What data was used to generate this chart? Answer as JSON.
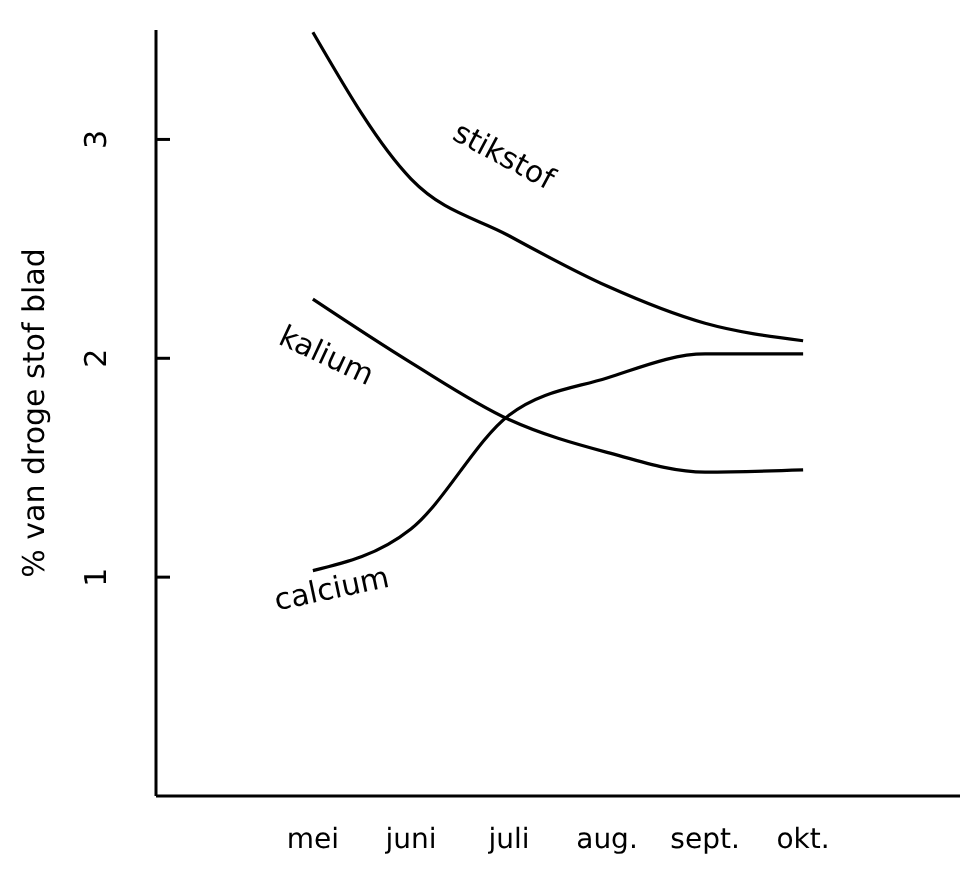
{
  "chart_data": {
    "type": "line",
    "ylabel": "% van droge stof blad",
    "ylim": [
      0,
      3.5
    ],
    "yticks": [
      1,
      2,
      3
    ],
    "categories": [
      "mei",
      "juni",
      "juli",
      "aug.",
      "sept.",
      "okt."
    ],
    "legend": false,
    "grid": false,
    "marker": "none",
    "line_style": "solid",
    "series": [
      {
        "name": "stikstof",
        "color": "#000000",
        "values": [
          3.49,
          2.82,
          2.56,
          2.33,
          2.16,
          2.08
        ]
      },
      {
        "name": "kalium",
        "color": "#000000",
        "values": [
          2.27,
          1.98,
          1.72,
          1.57,
          1.48,
          1.49
        ]
      },
      {
        "name": "calcium",
        "color": "#000000",
        "values": [
          1.03,
          1.22,
          1.74,
          1.91,
          2.02,
          2.02
        ]
      }
    ]
  }
}
